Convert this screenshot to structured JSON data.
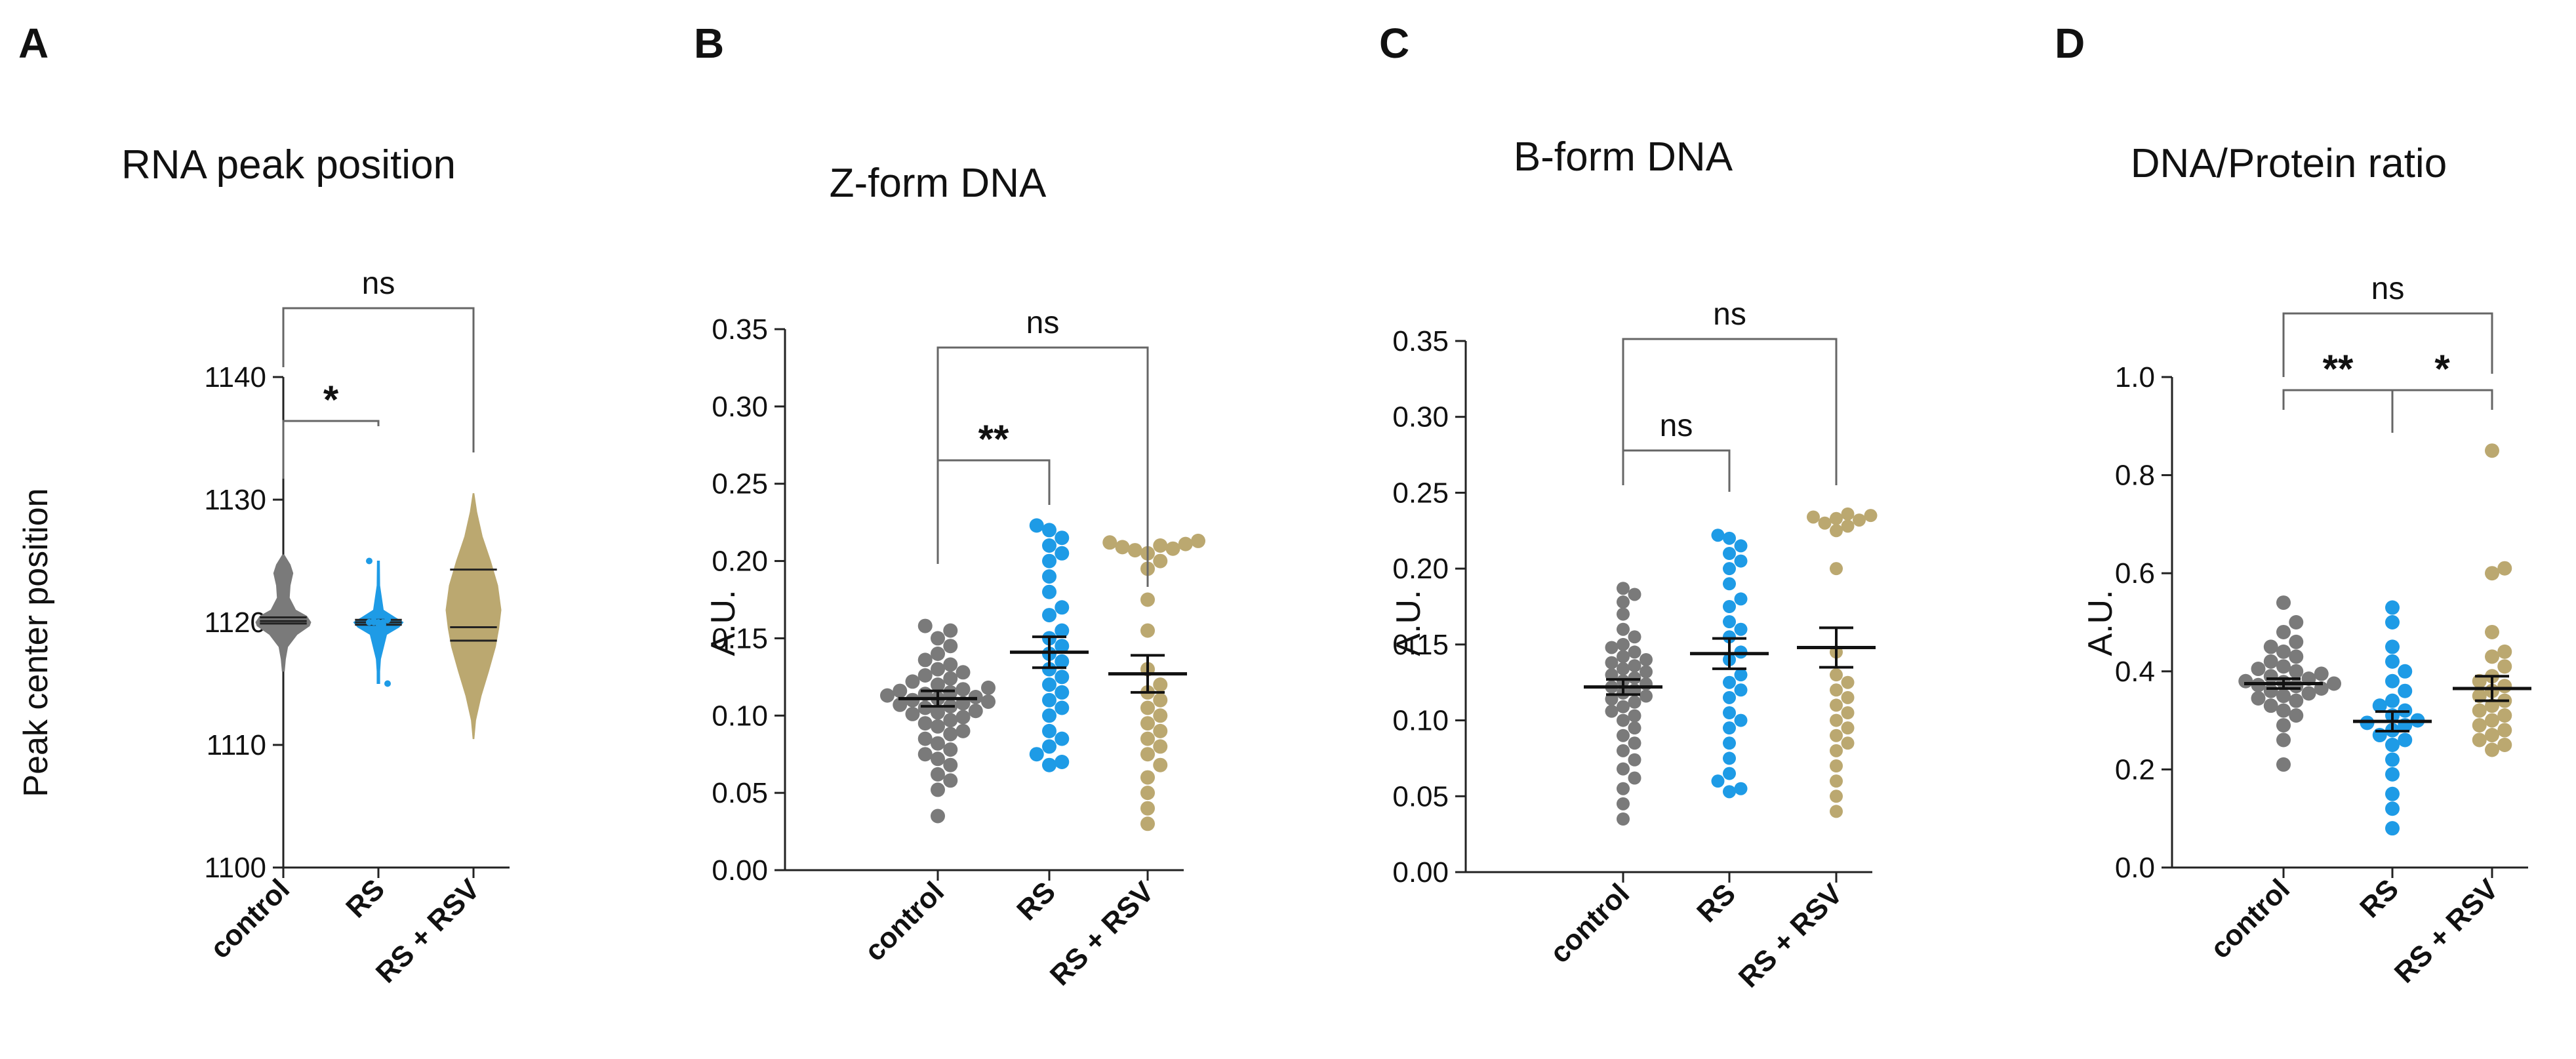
{
  "chart_data": [
    {
      "panel": "A",
      "type": "violin",
      "title": "RNA peak position",
      "ylabel": "Peak center position",
      "xlabel": "",
      "ylim": [
        1100,
        1140
      ],
      "yticks": [
        1100,
        1110,
        1120,
        1130,
        1140
      ],
      "categories": [
        "control",
        "RS",
        "RS + RSV"
      ],
      "colors": [
        "#7a7a7a",
        "#1e9be6",
        "#bba870"
      ],
      "violins": [
        {
          "name": "control",
          "min": 1116,
          "max": 1125.5,
          "median": 1120.1,
          "q1": 1119.9,
          "q3": 1120.4,
          "profile": [
            [
              1116,
              0.04
            ],
            [
              1117,
              0.08
            ],
            [
              1118,
              0.16
            ],
            [
              1119,
              0.5
            ],
            [
              1119.7,
              0.95
            ],
            [
              1120,
              1.0
            ],
            [
              1120.5,
              0.85
            ],
            [
              1121,
              0.45
            ],
            [
              1122,
              0.22
            ],
            [
              1123,
              0.25
            ],
            [
              1124,
              0.35
            ],
            [
              1124.7,
              0.25
            ],
            [
              1125.5,
              0.03
            ]
          ]
        },
        {
          "name": "RS",
          "min": 1115,
          "max": 1125,
          "median": 1120,
          "q1": 1119.8,
          "q3": 1120.2,
          "profile": [
            [
              1115,
              0.05
            ],
            [
              1116,
              0.05
            ],
            [
              1117,
              0.08
            ],
            [
              1119,
              0.3
            ],
            [
              1119.6,
              0.75
            ],
            [
              1120,
              0.9
            ],
            [
              1120.4,
              0.6
            ],
            [
              1121,
              0.18
            ],
            [
              1123,
              0.05
            ],
            [
              1125,
              0.04
            ]
          ]
        },
        {
          "name": "RS + RSV",
          "min": 1110.5,
          "max": 1130.5,
          "median": 1119.6,
          "q1": 1118.5,
          "q3": 1124.3,
          "profile": [
            [
              1110.5,
              0.02
            ],
            [
              1112,
              0.08
            ],
            [
              1114,
              0.28
            ],
            [
              1116,
              0.55
            ],
            [
              1118,
              0.8
            ],
            [
              1119.5,
              0.92
            ],
            [
              1121,
              1.0
            ],
            [
              1123,
              0.88
            ],
            [
              1125,
              0.62
            ],
            [
              1127,
              0.32
            ],
            [
              1129,
              0.12
            ],
            [
              1130.5,
              0.02
            ]
          ]
        }
      ],
      "points": {
        "RS": [
          1120,
          1120,
          1120,
          1119.8,
          1120.2,
          1120,
          1120.1,
          1119.9,
          1120,
          1115,
          1125
        ]
      },
      "comparisons": [
        {
          "from": "control",
          "to": "RS",
          "label": "*"
        },
        {
          "from": "control",
          "to": "RS + RSV",
          "label": "ns"
        }
      ]
    },
    {
      "panel": "B",
      "type": "scatter",
      "title": "Z-form DNA",
      "ylabel": "A.U.",
      "xlabel": "",
      "ylim": [
        0,
        0.35
      ],
      "yticks": [
        "0.00",
        "0.05",
        "0.10",
        "0.15",
        "0.20",
        "0.25",
        "0.30",
        "0.35"
      ],
      "categories": [
        "control",
        "RS",
        "RS + RSV"
      ],
      "colors": [
        "#7a7a7a",
        "#1e9be6",
        "#bba870"
      ],
      "series": [
        {
          "name": "control",
          "mean": 0.111,
          "sem": 0.005,
          "values": [
            0.035,
            0.052,
            0.058,
            0.062,
            0.068,
            0.072,
            0.075,
            0.078,
            0.082,
            0.085,
            0.088,
            0.09,
            0.093,
            0.095,
            0.097,
            0.099,
            0.101,
            0.102,
            0.103,
            0.105,
            0.106,
            0.107,
            0.108,
            0.109,
            0.11,
            0.111,
            0.112,
            0.113,
            0.114,
            0.115,
            0.116,
            0.117,
            0.118,
            0.12,
            0.122,
            0.124,
            0.126,
            0.128,
            0.13,
            0.133,
            0.136,
            0.14,
            0.145,
            0.15,
            0.155,
            0.158
          ]
        },
        {
          "name": "RS",
          "mean": 0.141,
          "sem": 0.01,
          "values": [
            0.068,
            0.07,
            0.075,
            0.08,
            0.085,
            0.09,
            0.1,
            0.105,
            0.11,
            0.115,
            0.12,
            0.125,
            0.13,
            0.135,
            0.14,
            0.145,
            0.15,
            0.155,
            0.165,
            0.17,
            0.18,
            0.19,
            0.2,
            0.205,
            0.21,
            0.215,
            0.22,
            0.223
          ]
        },
        {
          "name": "RS + RSV",
          "mean": 0.127,
          "sem": 0.012,
          "values": [
            0.03,
            0.04,
            0.05,
            0.06,
            0.068,
            0.075,
            0.08,
            0.085,
            0.09,
            0.095,
            0.1,
            0.105,
            0.11,
            0.115,
            0.12,
            0.13,
            0.155,
            0.175,
            0.195,
            0.2,
            0.205,
            0.207,
            0.208,
            0.209,
            0.21,
            0.211,
            0.212,
            0.213
          ]
        }
      ],
      "comparisons": [
        {
          "from": "control",
          "to": "RS",
          "label": "**"
        },
        {
          "from": "control",
          "to": "RS + RSV",
          "label": "ns"
        }
      ]
    },
    {
      "panel": "C",
      "type": "scatter",
      "title": "B-form DNA",
      "ylabel": "A.U.",
      "xlabel": "",
      "ylim": [
        0,
        0.35
      ],
      "yticks": [
        "0.00",
        "0.05",
        "0.10",
        "0.15",
        "0.20",
        "0.25",
        "0.30",
        "0.35"
      ],
      "categories": [
        "control",
        "RS",
        "RS + RSV"
      ],
      "colors": [
        "#7a7a7a",
        "#1e9be6",
        "#bba870"
      ],
      "series": [
        {
          "name": "control",
          "mean": 0.122,
          "sem": 0.005,
          "values": [
            0.035,
            0.045,
            0.055,
            0.062,
            0.068,
            0.074,
            0.08,
            0.085,
            0.09,
            0.095,
            0.1,
            0.103,
            0.106,
            0.109,
            0.112,
            0.114,
            0.116,
            0.118,
            0.12,
            0.122,
            0.124,
            0.126,
            0.128,
            0.13,
            0.132,
            0.134,
            0.136,
            0.138,
            0.14,
            0.142,
            0.145,
            0.148,
            0.15,
            0.155,
            0.16,
            0.17,
            0.178,
            0.183,
            0.187
          ]
        },
        {
          "name": "RS",
          "mean": 0.144,
          "sem": 0.01,
          "values": [
            0.053,
            0.055,
            0.06,
            0.065,
            0.075,
            0.085,
            0.095,
            0.1,
            0.105,
            0.115,
            0.12,
            0.125,
            0.13,
            0.14,
            0.145,
            0.155,
            0.16,
            0.165,
            0.175,
            0.18,
            0.19,
            0.2,
            0.205,
            0.21,
            0.215,
            0.22,
            0.222
          ]
        },
        {
          "name": "RS + RSV",
          "mean": 0.148,
          "sem": 0.013,
          "values": [
            0.04,
            0.05,
            0.06,
            0.07,
            0.08,
            0.085,
            0.09,
            0.095,
            0.1,
            0.105,
            0.11,
            0.115,
            0.12,
            0.125,
            0.13,
            0.145,
            0.2,
            0.225,
            0.228,
            0.23,
            0.232,
            0.233,
            0.234,
            0.235,
            0.236
          ]
        }
      ],
      "comparisons": [
        {
          "from": "control",
          "to": "RS",
          "label": "ns"
        },
        {
          "from": "control",
          "to": "RS + RSV",
          "label": "ns"
        }
      ]
    },
    {
      "panel": "D",
      "type": "scatter",
      "title": "DNA/Protein ratio",
      "ylabel": "A.U.",
      "xlabel": "",
      "ylim": [
        0,
        1.0
      ],
      "yticks": [
        "0.0",
        "0.2",
        "0.4",
        "0.6",
        "0.8",
        "1.0"
      ],
      "categories": [
        "control",
        "RS",
        "RS + RSV"
      ],
      "colors": [
        "#7a7a7a",
        "#1e9be6",
        "#bba870"
      ],
      "series": [
        {
          "name": "control",
          "mean": 0.375,
          "sem": 0.01,
          "values": [
            0.21,
            0.26,
            0.29,
            0.31,
            0.32,
            0.33,
            0.34,
            0.345,
            0.35,
            0.355,
            0.36,
            0.365,
            0.37,
            0.372,
            0.375,
            0.378,
            0.38,
            0.385,
            0.39,
            0.395,
            0.4,
            0.405,
            0.41,
            0.42,
            0.43,
            0.44,
            0.45,
            0.46,
            0.48,
            0.5,
            0.54
          ]
        },
        {
          "name": "RS",
          "mean": 0.298,
          "sem": 0.02,
          "values": [
            0.08,
            0.12,
            0.15,
            0.19,
            0.22,
            0.25,
            0.26,
            0.27,
            0.28,
            0.29,
            0.295,
            0.3,
            0.31,
            0.32,
            0.33,
            0.34,
            0.36,
            0.38,
            0.4,
            0.42,
            0.45,
            0.5,
            0.53
          ]
        },
        {
          "name": "RS + RSV",
          "mean": 0.365,
          "sem": 0.025,
          "values": [
            0.24,
            0.25,
            0.26,
            0.27,
            0.28,
            0.29,
            0.3,
            0.31,
            0.32,
            0.33,
            0.34,
            0.35,
            0.36,
            0.37,
            0.38,
            0.39,
            0.41,
            0.43,
            0.44,
            0.48,
            0.6,
            0.61,
            0.85
          ]
        }
      ],
      "comparisons": [
        {
          "from": "control",
          "to": "RS",
          "label": "**"
        },
        {
          "from": "RS",
          "to": "RS + RSV",
          "label": "*"
        },
        {
          "from": "control",
          "to": "RS + RSV",
          "label": "ns"
        }
      ]
    }
  ]
}
